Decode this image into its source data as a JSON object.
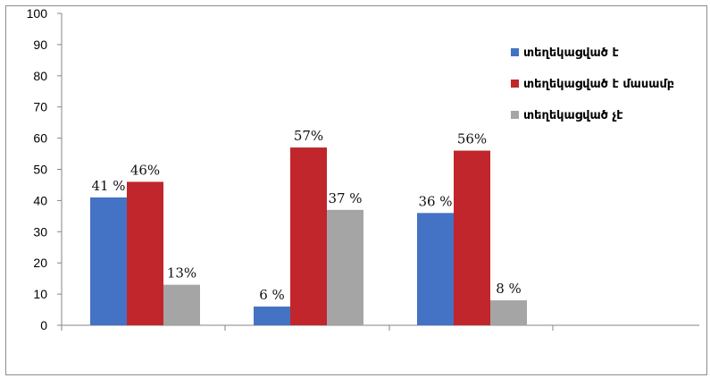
{
  "chart_data": {
    "type": "bar",
    "categories": [
      "",
      "",
      ""
    ],
    "ylim": [
      0,
      100
    ],
    "yticks": [
      "0",
      "10",
      "20",
      "30",
      "40",
      "50",
      "60",
      "70",
      "80",
      "90",
      "100"
    ],
    "legend_position": "right",
    "series": [
      {
        "name": "տեղեկացված է",
        "color": "#4472C4",
        "values": [
          41,
          6,
          36
        ],
        "labels": [
          "41 %",
          "6 %",
          "36 %"
        ]
      },
      {
        "name": "տեղեկացված է մասամբ",
        "color": "#C0262B",
        "values": [
          46,
          57,
          56
        ],
        "labels": [
          "46%",
          "57%",
          "56%"
        ]
      },
      {
        "name": "տեղեկացված չէ",
        "color": "#A5A5A5",
        "values": [
          13,
          37,
          8
        ],
        "labels": [
          "13%",
          "37 %",
          "8 %"
        ]
      }
    ]
  }
}
